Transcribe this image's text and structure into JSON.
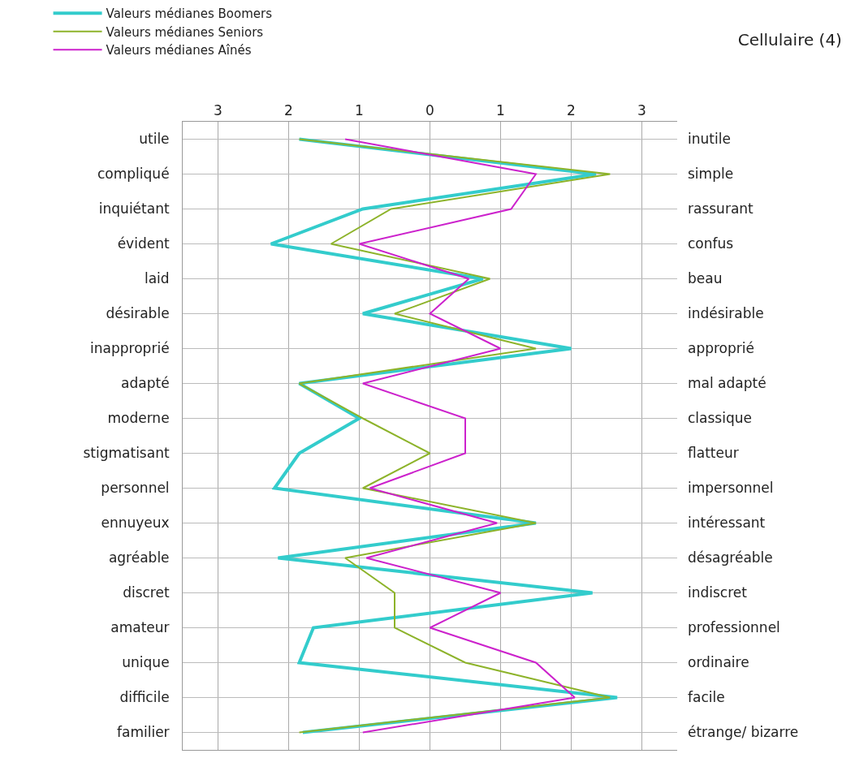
{
  "chart_data": {
    "type": "line",
    "title": "Cellulaire (4)",
    "orientation": "horizontal",
    "categories": [
      "utile",
      "compliqué",
      "inquiétant",
      "évident",
      "laid",
      "désirable",
      "inapproprié",
      "adapté",
      "moderne",
      "stigmatisant",
      "personnel",
      "ennuyeux",
      "agréable",
      "discret",
      "amateur",
      "unique",
      "difficile",
      "familier"
    ],
    "y2_categories": [
      "inutile",
      "simple",
      "rassurant",
      "confus",
      "beau",
      "indésirable",
      "approprié",
      "mal adapté",
      "classique",
      "flatteur",
      "impersonnel",
      "intéressant",
      "désagréable",
      "indiscret",
      "professionnel",
      "ordinaire",
      "facile",
      "étrange/ bizarre"
    ],
    "series": [
      {
        "name": "Valeurs médianes Boomers",
        "color": "#33cccc",
        "values": [
          -1.85,
          2.35,
          -0.95,
          -2.25,
          0.75,
          -0.95,
          2.0,
          -1.85,
          -1.0,
          -1.85,
          -2.2,
          1.5,
          -2.15,
          2.3,
          -1.65,
          -1.85,
          2.65,
          -1.8
        ]
      },
      {
        "name": "Valeurs médianes Seniors",
        "color": "#8db32a",
        "values": [
          -1.85,
          2.55,
          -0.55,
          -1.4,
          0.85,
          -0.5,
          1.5,
          -1.85,
          -0.95,
          0.0,
          -0.95,
          1.5,
          -1.2,
          -0.5,
          -0.5,
          0.5,
          2.55,
          -1.85
        ]
      },
      {
        "name": "Valeurs médianes Aînés",
        "color": "#cc22cc",
        "values": [
          -1.2,
          1.5,
          1.15,
          -1.0,
          0.55,
          0.0,
          1.0,
          -0.95,
          0.5,
          0.5,
          -0.85,
          0.95,
          -0.9,
          1.0,
          0.0,
          1.5,
          2.05,
          -0.95
        ]
      }
    ],
    "xlim": [
      -3.5,
      3.5
    ],
    "xticks": [
      {
        "value": -3,
        "label": "3"
      },
      {
        "value": -2,
        "label": "2"
      },
      {
        "value": -1,
        "label": "1"
      },
      0,
      1,
      {
        "value": 2,
        "label": "2"
      },
      {
        "value": 3,
        "label": "3"
      }
    ],
    "grid": true,
    "legend": "top left",
    "marker": "none",
    "line_style": "solid"
  }
}
